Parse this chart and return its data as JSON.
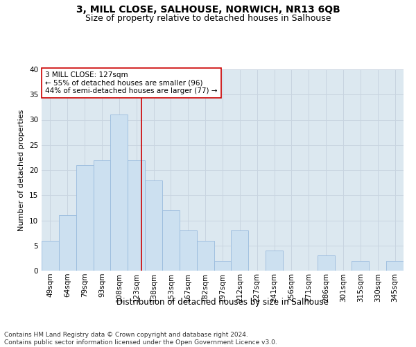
{
  "title": "3, MILL CLOSE, SALHOUSE, NORWICH, NR13 6QB",
  "subtitle": "Size of property relative to detached houses in Salhouse",
  "xlabel": "Distribution of detached houses by size in Salhouse",
  "ylabel": "Number of detached properties",
  "categories": [
    "49sqm",
    "64sqm",
    "79sqm",
    "93sqm",
    "108sqm",
    "123sqm",
    "138sqm",
    "153sqm",
    "167sqm",
    "182sqm",
    "197sqm",
    "212sqm",
    "227sqm",
    "241sqm",
    "256sqm",
    "271sqm",
    "286sqm",
    "301sqm",
    "315sqm",
    "330sqm",
    "345sqm"
  ],
  "values": [
    6,
    11,
    21,
    22,
    31,
    22,
    18,
    12,
    8,
    6,
    2,
    8,
    0,
    4,
    0,
    0,
    3,
    0,
    2,
    0,
    2
  ],
  "bar_color": "#cce0f0",
  "bar_edge_color": "#99bbdd",
  "bar_width": 1.0,
  "vline_x": 5.3,
  "vline_color": "#cc0000",
  "annotation_text": "3 MILL CLOSE: 127sqm\n← 55% of detached houses are smaller (96)\n44% of semi-detached houses are larger (77) →",
  "annotation_box_color": "#ffffff",
  "annotation_box_edge": "#cc0000",
  "ylim": [
    0,
    40
  ],
  "yticks": [
    0,
    5,
    10,
    15,
    20,
    25,
    30,
    35,
    40
  ],
  "grid_color": "#c8d4e0",
  "bg_color": "#dce8f0",
  "footer_line1": "Contains HM Land Registry data © Crown copyright and database right 2024.",
  "footer_line2": "Contains public sector information licensed under the Open Government Licence v3.0.",
  "title_fontsize": 10,
  "subtitle_fontsize": 9,
  "xlabel_fontsize": 8.5,
  "ylabel_fontsize": 8,
  "tick_fontsize": 7.5,
  "annotation_fontsize": 7.5,
  "footer_fontsize": 6.5
}
